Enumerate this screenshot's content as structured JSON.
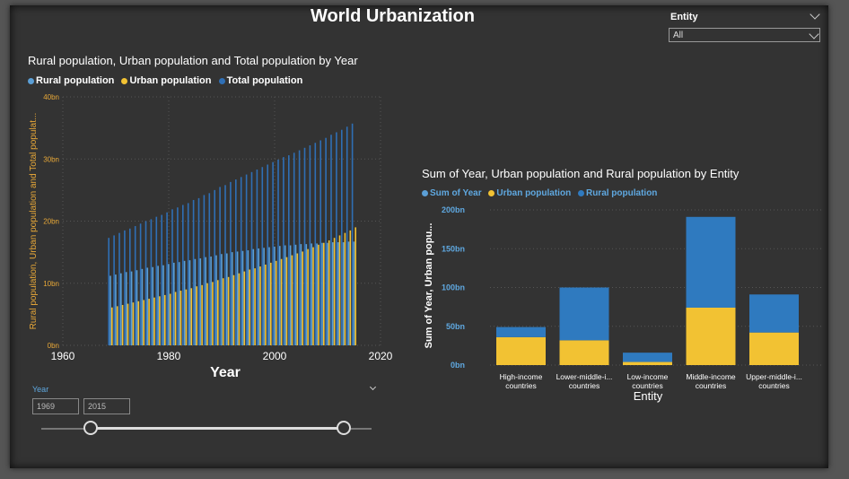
{
  "report": {
    "title": "World Urbanization"
  },
  "entity_slicer": {
    "label": "Entity",
    "selected": "All"
  },
  "year_slicer": {
    "label": "Year",
    "start": "1969",
    "end": "2015",
    "range_min": 1960,
    "range_max": 2020,
    "start_value": 1969,
    "end_value": 2015
  },
  "colors": {
    "rural": "#5b9fd6",
    "urban": "#f2c233",
    "total": "#2f6fb5",
    "sum_year": "#2f7abf",
    "axis_label": "#e8a838",
    "background": "#333333"
  },
  "chart_data": [
    {
      "type": "bar",
      "title": "Rural population, Urban population and Total population by Year",
      "xlabel": "Year",
      "ylabel": "Rural population, Urban population and Total populat...",
      "x_ticks": [
        "1960",
        "1980",
        "2000",
        "2020"
      ],
      "y_ticks": [
        "0bn",
        "10bn",
        "20bn",
        "30bn",
        "40bn"
      ],
      "xlim": [
        1960,
        2020
      ],
      "ylim": [
        0,
        40
      ],
      "unit": "bn",
      "legend": "top-left",
      "grid": true,
      "x": [
        1969,
        1970,
        1971,
        1972,
        1973,
        1974,
        1975,
        1976,
        1977,
        1978,
        1979,
        1980,
        1981,
        1982,
        1983,
        1984,
        1985,
        1986,
        1987,
        1988,
        1989,
        1990,
        1991,
        1992,
        1993,
        1994,
        1995,
        1996,
        1997,
        1998,
        1999,
        2000,
        2001,
        2002,
        2003,
        2004,
        2005,
        2006,
        2007,
        2008,
        2009,
        2010,
        2011,
        2012,
        2013,
        2014,
        2015
      ],
      "series": [
        {
          "name": "Rural population",
          "values": [
            11.2,
            11.4,
            11.6,
            11.8,
            11.9,
            12.1,
            12.3,
            12.5,
            12.6,
            12.8,
            12.9,
            13.1,
            13.3,
            13.4,
            13.6,
            13.7,
            13.9,
            14.0,
            14.2,
            14.3,
            14.5,
            14.7,
            14.8,
            15.0,
            15.1,
            15.2,
            15.3,
            15.5,
            15.6,
            15.7,
            15.8,
            15.9,
            16.0,
            16.1,
            16.1,
            16.2,
            16.3,
            16.3,
            16.4,
            16.4,
            16.5,
            16.5,
            16.6,
            16.6,
            16.6,
            16.7,
            16.7
          ]
        },
        {
          "name": "Urban population",
          "values": [
            6.1,
            6.3,
            6.5,
            6.7,
            6.9,
            7.1,
            7.3,
            7.5,
            7.7,
            7.9,
            8.1,
            8.3,
            8.6,
            8.8,
            9.0,
            9.2,
            9.5,
            9.7,
            10.0,
            10.2,
            10.5,
            10.8,
            11.0,
            11.3,
            11.6,
            11.9,
            12.2,
            12.4,
            12.7,
            13.0,
            13.3,
            13.6,
            13.9,
            14.2,
            14.5,
            14.8,
            15.1,
            15.5,
            15.8,
            16.2,
            16.5,
            16.9,
            17.3,
            17.7,
            18.1,
            18.5,
            19.0
          ]
        },
        {
          "name": "Total population",
          "values": [
            17.3,
            17.7,
            18.1,
            18.5,
            18.8,
            19.2,
            19.6,
            20.0,
            20.3,
            20.7,
            21.0,
            21.4,
            21.9,
            22.2,
            22.6,
            22.9,
            23.4,
            23.7,
            24.2,
            24.5,
            25.0,
            25.5,
            25.8,
            26.3,
            26.7,
            27.1,
            27.5,
            27.9,
            28.3,
            28.7,
            29.1,
            29.5,
            29.9,
            30.3,
            30.6,
            31.0,
            31.4,
            31.8,
            32.2,
            32.6,
            33.0,
            33.4,
            33.9,
            34.3,
            34.7,
            35.2,
            35.7
          ]
        }
      ]
    },
    {
      "type": "bar",
      "title": "Sum of Year, Urban population and Rural population by Entity",
      "xlabel": "Entity",
      "ylabel": "Sum of Year, Urban popu...",
      "y_ticks": [
        "0bn",
        "50bn",
        "100bn",
        "150bn",
        "200bn"
      ],
      "ylim": [
        0,
        200
      ],
      "unit": "bn",
      "legend": "top-left",
      "grid": true,
      "categories": [
        "High-income countries",
        "Lower-middle-i... countries",
        "Low-income countries",
        "Middle-income countries",
        "Upper-middle-i... countries"
      ],
      "category_lines": [
        [
          "High-income",
          "countries"
        ],
        [
          "Lower-middle-i...",
          "countries"
        ],
        [
          "Low-income",
          "countries"
        ],
        [
          "Middle-income",
          "countries"
        ],
        [
          "Upper-middle-i...",
          "countries"
        ]
      ],
      "legend_entries": [
        "Sum of Year",
        "Urban population",
        "Rural population"
      ],
      "series": [
        {
          "name": "Urban population",
          "values": [
            36,
            32,
            4,
            74,
            42
          ]
        },
        {
          "name": "Rural population",
          "values": [
            13,
            68,
            12,
            117,
            49
          ]
        }
      ]
    }
  ]
}
